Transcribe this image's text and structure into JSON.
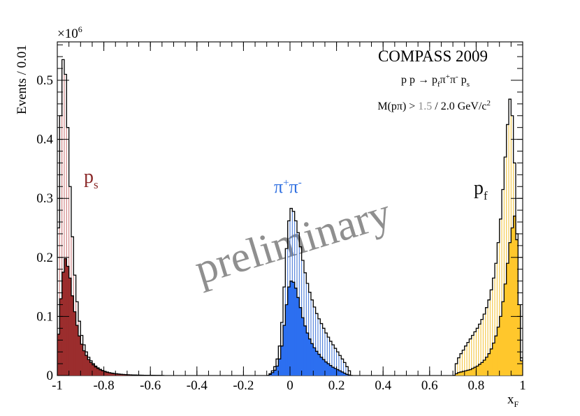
{
  "chart_data": {
    "type": "histogram",
    "title": "COMPASS 2009",
    "reaction": {
      "base": "p p → p",
      "sub1": "f",
      "mid": "π",
      "sup1": "+",
      "mid2": "π",
      "sup2": "-",
      "end": " p",
      "sub2": "s"
    },
    "mass_cut": {
      "prefix": "M(pπ) > ",
      "cut1": "1.5",
      "rest": " / 2.0 GeV/c",
      "sup": "2"
    },
    "ylabel": "Events / 0.01",
    "xlabel": {
      "base": "x",
      "sub": "F"
    },
    "y_multiplier": {
      "base": "×10",
      "sup": "6"
    },
    "xlim": [
      -1.0,
      1.0
    ],
    "ylim": [
      0,
      0.565
    ],
    "x_ticks": [
      "-1",
      "-0.8",
      "-0.6",
      "-0.4",
      "-0.2",
      "0",
      "0.2",
      "0.4",
      "0.6",
      "0.8",
      "1"
    ],
    "x_tick_values": [
      -1.0,
      -0.8,
      -0.6,
      -0.4,
      -0.2,
      0.0,
      0.2,
      0.4,
      0.6,
      0.8,
      1.0
    ],
    "y_ticks": [
      "0",
      "0.1",
      "0.2",
      "0.3",
      "0.4",
      "0.5"
    ],
    "y_tick_values": [
      0.0,
      0.1,
      0.2,
      0.3,
      0.4,
      0.5
    ],
    "watermark": "preliminary",
    "labels": {
      "ps": {
        "base": "p",
        "sub": "s",
        "color": "#8b2a2a"
      },
      "pipi": {
        "base": "π",
        "sup1": "+",
        "mid": "π",
        "sup2": "-",
        "color": "#2f6fe0"
      },
      "pf": {
        "base": "p",
        "sub": "f",
        "color": "#111111"
      }
    },
    "colors": {
      "ps": "#9b2d2d",
      "pipi": "#2c6ff0",
      "pf": "#ffc72c",
      "hatch_ps": "#c87070",
      "hatch_pipi": "#3d72d6",
      "hatch_pf": "#f2c030",
      "watermark": "#8f8f8f"
    },
    "series": [
      {
        "name": "p_s M>2.0",
        "style": "filled",
        "color": "ps",
        "x": [
          -1.0,
          -0.99,
          -0.98,
          -0.97,
          -0.96,
          -0.95,
          -0.94,
          -0.93,
          -0.92,
          -0.91,
          -0.9,
          -0.89,
          -0.88,
          -0.87,
          -0.86,
          -0.85,
          -0.84,
          -0.83,
          -0.82,
          -0.81,
          -0.8,
          -0.79,
          -0.78,
          -0.77,
          -0.76,
          -0.75,
          -0.74,
          -0.73,
          -0.72,
          -0.71,
          -0.7,
          -0.69,
          -0.68,
          -0.67,
          -0.66,
          -0.65,
          -0.64,
          -0.63,
          -0.62,
          -0.61,
          -0.6,
          -0.59,
          -0.58,
          -0.57,
          -0.56,
          -0.55
        ],
        "values": [
          0.07,
          0.13,
          0.175,
          0.198,
          0.185,
          0.165,
          0.135,
          0.108,
          0.085,
          0.067,
          0.053,
          0.042,
          0.034,
          0.027,
          0.022,
          0.018,
          0.0145,
          0.012,
          0.0098,
          0.008,
          0.0066,
          0.0055,
          0.0046,
          0.0039,
          0.0033,
          0.0028,
          0.0024,
          0.002,
          0.0017,
          0.0014,
          0.0012,
          0.001,
          0.0008,
          0.0007,
          0.0006,
          0.0005,
          0.0004,
          0.0003,
          0.0003,
          0.0002,
          0.0002,
          0.0001,
          0.0001,
          0.0001,
          0.0001,
          0.0
        ]
      },
      {
        "name": "p_s M>1.5",
        "style": "hatched",
        "color": "hatch_ps",
        "x": [
          -1.0,
          -0.99,
          -0.98,
          -0.97,
          -0.96,
          -0.95,
          -0.94,
          -0.93,
          -0.92,
          -0.91,
          -0.9,
          -0.89,
          -0.88,
          -0.87,
          -0.86,
          -0.85,
          -0.84,
          -0.83,
          -0.82,
          -0.81,
          -0.8,
          -0.79,
          -0.78,
          -0.77,
          -0.76,
          -0.75,
          -0.74,
          -0.73,
          -0.72,
          -0.71,
          -0.7,
          -0.69,
          -0.68,
          -0.67,
          -0.66,
          -0.65,
          -0.64,
          -0.63,
          -0.62,
          -0.61,
          -0.6,
          -0.59,
          -0.58,
          -0.57,
          -0.56,
          -0.55
        ],
        "values": [
          0.25,
          0.44,
          0.535,
          0.51,
          0.42,
          0.32,
          0.235,
          0.17,
          0.125,
          0.092,
          0.068,
          0.052,
          0.04,
          0.031,
          0.025,
          0.02,
          0.016,
          0.013,
          0.0105,
          0.0086,
          0.0071,
          0.0059,
          0.0049,
          0.0041,
          0.0035,
          0.003,
          0.0025,
          0.0021,
          0.0018,
          0.0015,
          0.0013,
          0.0011,
          0.0009,
          0.0008,
          0.0007,
          0.0006,
          0.0005,
          0.0004,
          0.0003,
          0.0003,
          0.0002,
          0.0002,
          0.0001,
          0.0001,
          0.0001,
          0.0
        ]
      },
      {
        "name": "pi+pi- M>2.0",
        "style": "filled",
        "color": "pipi",
        "x": [
          -0.1,
          -0.09,
          -0.08,
          -0.07,
          -0.06,
          -0.05,
          -0.04,
          -0.03,
          -0.02,
          -0.01,
          0.0,
          0.01,
          0.02,
          0.03,
          0.04,
          0.05,
          0.06,
          0.07,
          0.08,
          0.09,
          0.1,
          0.11,
          0.12,
          0.13,
          0.14,
          0.15,
          0.16,
          0.17,
          0.18,
          0.19,
          0.2,
          0.21,
          0.22,
          0.23,
          0.24,
          0.25,
          0.26
        ],
        "values": [
          0.0,
          0.002,
          0.005,
          0.009,
          0.016,
          0.028,
          0.05,
          0.085,
          0.12,
          0.15,
          0.16,
          0.158,
          0.148,
          0.132,
          0.115,
          0.098,
          0.084,
          0.072,
          0.062,
          0.054,
          0.047,
          0.041,
          0.036,
          0.031,
          0.027,
          0.023,
          0.02,
          0.017,
          0.014,
          0.012,
          0.01,
          0.008,
          0.006,
          0.004,
          0.002,
          0.001,
          0.0
        ]
      },
      {
        "name": "pi+pi- M>1.5",
        "style": "hatched",
        "color": "hatch_pipi",
        "x": [
          -0.1,
          -0.09,
          -0.08,
          -0.07,
          -0.06,
          -0.05,
          -0.04,
          -0.03,
          -0.02,
          -0.01,
          0.0,
          0.01,
          0.02,
          0.03,
          0.04,
          0.05,
          0.06,
          0.07,
          0.08,
          0.09,
          0.1,
          0.11,
          0.12,
          0.13,
          0.14,
          0.15,
          0.16,
          0.17,
          0.18,
          0.19,
          0.2,
          0.21,
          0.22,
          0.23,
          0.24,
          0.25,
          0.26
        ],
        "values": [
          0.0,
          0.003,
          0.008,
          0.015,
          0.028,
          0.05,
          0.09,
          0.15,
          0.215,
          0.262,
          0.283,
          0.278,
          0.262,
          0.242,
          0.218,
          0.195,
          0.174,
          0.156,
          0.141,
          0.128,
          0.116,
          0.105,
          0.096,
          0.088,
          0.08,
          0.072,
          0.065,
          0.058,
          0.052,
          0.046,
          0.04,
          0.034,
          0.028,
          0.022,
          0.015,
          0.008,
          0.0
        ]
      },
      {
        "name": "p_f M>2.0",
        "style": "filled",
        "color": "pf",
        "x": [
          0.7,
          0.71,
          0.72,
          0.73,
          0.74,
          0.75,
          0.76,
          0.77,
          0.78,
          0.79,
          0.8,
          0.81,
          0.82,
          0.83,
          0.84,
          0.85,
          0.86,
          0.87,
          0.88,
          0.89,
          0.9,
          0.91,
          0.92,
          0.93,
          0.94,
          0.95,
          0.96,
          0.97,
          0.98,
          0.99
        ],
        "values": [
          0.0,
          0.003,
          0.005,
          0.006,
          0.007,
          0.008,
          0.009,
          0.01,
          0.012,
          0.014,
          0.016,
          0.019,
          0.022,
          0.026,
          0.031,
          0.037,
          0.045,
          0.055,
          0.067,
          0.082,
          0.1,
          0.125,
          0.155,
          0.19,
          0.225,
          0.25,
          0.27,
          0.23,
          0.12,
          0.025
        ]
      },
      {
        "name": "p_f M>1.5",
        "style": "hatched",
        "color": "hatch_pf",
        "x": [
          0.7,
          0.71,
          0.72,
          0.73,
          0.74,
          0.75,
          0.76,
          0.77,
          0.78,
          0.79,
          0.8,
          0.81,
          0.82,
          0.83,
          0.84,
          0.85,
          0.86,
          0.87,
          0.88,
          0.89,
          0.9,
          0.91,
          0.92,
          0.93,
          0.94,
          0.95,
          0.96,
          0.97,
          0.98,
          0.99
        ],
        "values": [
          0.0,
          0.02,
          0.03,
          0.037,
          0.043,
          0.05,
          0.056,
          0.062,
          0.068,
          0.074,
          0.08,
          0.087,
          0.095,
          0.104,
          0.115,
          0.128,
          0.145,
          0.165,
          0.19,
          0.225,
          0.265,
          0.315,
          0.37,
          0.425,
          0.468,
          0.44,
          0.36,
          0.24,
          0.11,
          0.03
        ]
      }
    ]
  }
}
